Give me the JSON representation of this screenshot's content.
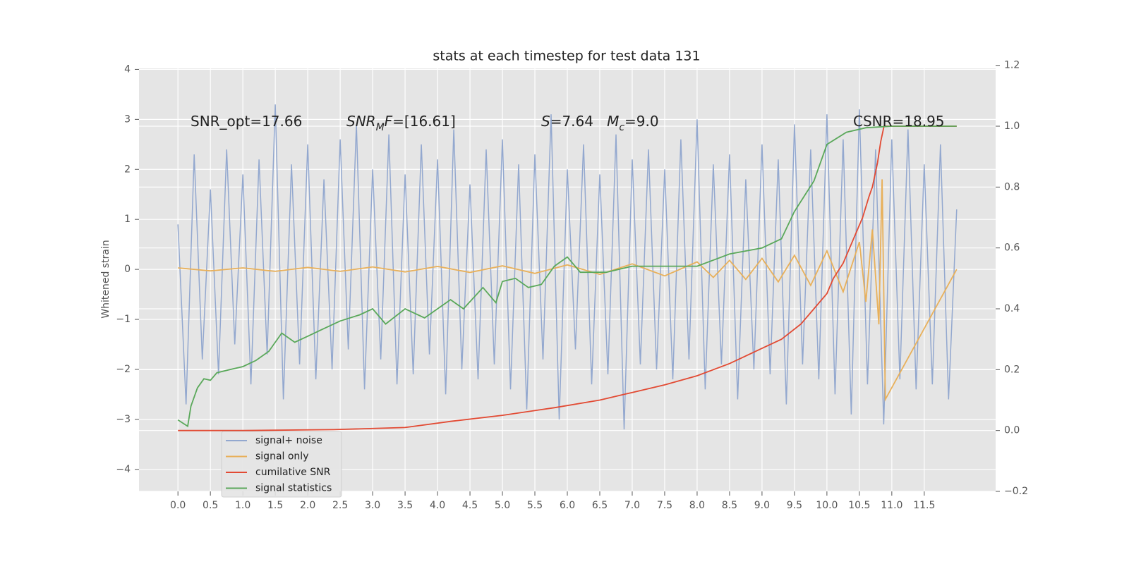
{
  "chart_data": {
    "type": "line",
    "title": "stats at each timestep for test data 131",
    "y_label": "Whitened strain",
    "annotations": [
      {
        "segments": [
          {
            "text": "SNR_opt=17.66"
          }
        ]
      },
      {
        "segments": [
          {
            "text": "SNR",
            "italic": true
          },
          {
            "text": "M",
            "italic": true,
            "sub": true
          },
          {
            "text": "F",
            "italic": true
          },
          {
            "text": "=[16.61]"
          }
        ]
      },
      {
        "segments": [
          {
            "text": "S",
            "italic": true
          },
          {
            "text": "=7.64   "
          },
          {
            "text": "M",
            "italic": true
          },
          {
            "text": "c",
            "italic": true,
            "sub": true
          },
          {
            "text": "=9.0"
          }
        ]
      },
      {
        "segments": [
          {
            "text": "CSNR=18.95"
          }
        ]
      }
    ],
    "xlim": [
      -0.6,
      12.6
    ],
    "ylim": [
      -4.44,
      4.02
    ],
    "y2lim": [
      -0.2,
      1.19
    ],
    "xticks": [
      {
        "value": 0,
        "label": "0.0"
      },
      0.5,
      {
        "value": 1,
        "label": "1.0"
      },
      1.5,
      {
        "value": 2,
        "label": "2.0"
      },
      2.5,
      {
        "value": 3,
        "label": "3.0"
      },
      3.5,
      {
        "value": 4,
        "label": "4.0"
      },
      4.5,
      {
        "value": 5,
        "label": "5.0"
      },
      5.5,
      {
        "value": 6,
        "label": "6.0"
      },
      6.5,
      {
        "value": 7,
        "label": "7.0"
      },
      7.5,
      {
        "value": 8,
        "label": "8.0"
      },
      8.5,
      {
        "value": 9,
        "label": "9.0"
      },
      9.5,
      {
        "value": 10,
        "label": "10.0"
      },
      10.5,
      {
        "value": 11,
        "label": "11.0"
      },
      11.5
    ],
    "yticks": [
      {
        "value": -4,
        "label": "−4"
      },
      {
        "value": -3,
        "label": "−3"
      },
      {
        "value": -2,
        "label": "−2"
      },
      {
        "value": -1,
        "label": "−1"
      },
      0,
      1,
      2,
      3,
      4
    ],
    "y2ticks": [
      {
        "value": -0.2,
        "label": "−0.2"
      },
      {
        "value": 0,
        "label": "0.0"
      },
      0.2,
      0.4,
      0.6,
      0.8,
      {
        "value": 1,
        "label": "1.0"
      },
      1.2
    ],
    "grid": true,
    "legend": "lower left",
    "series": [
      {
        "name": "signal+ noise",
        "color": "#93a8cf",
        "x": [
          0,
          0.125,
          0.25,
          0.375,
          0.5,
          0.625,
          0.75,
          0.875,
          1,
          1.125,
          1.25,
          1.375,
          1.5,
          1.625,
          1.75,
          1.875,
          2,
          2.125,
          2.25,
          2.375,
          2.5,
          2.625,
          2.75,
          2.875,
          3,
          3.125,
          3.25,
          3.375,
          3.5,
          3.625,
          3.75,
          3.875,
          4,
          4.125,
          4.25,
          4.375,
          4.5,
          4.625,
          4.75,
          4.875,
          5,
          5.125,
          5.25,
          5.375,
          5.5,
          5.625,
          5.75,
          5.875,
          6,
          6.125,
          6.25,
          6.375,
          6.5,
          6.625,
          6.75,
          6.875,
          7,
          7.125,
          7.25,
          7.375,
          7.5,
          7.625,
          7.75,
          7.875,
          8,
          8.125,
          8.25,
          8.375,
          8.5,
          8.625,
          8.75,
          8.875,
          9,
          9.125,
          9.25,
          9.375,
          9.5,
          9.625,
          9.75,
          9.875,
          10,
          10.125,
          10.25,
          10.375,
          10.5,
          10.625,
          10.75,
          10.875,
          11,
          11.125,
          11.25,
          11.375,
          11.5,
          11.625,
          11.75,
          11.875,
          12
        ],
        "values": [
          0.9,
          -2.7,
          2.3,
          -1.8,
          1.6,
          -2.1,
          2.4,
          -1.5,
          1.9,
          -2.3,
          2.2,
          -1.7,
          3.3,
          -2.6,
          2.1,
          -1.9,
          2.5,
          -2.2,
          1.8,
          -2.0,
          2.6,
          -1.6,
          2.9,
          -2.4,
          2.0,
          -1.8,
          2.7,
          -2.3,
          1.9,
          -2.1,
          2.5,
          -1.7,
          2.2,
          -2.5,
          2.8,
          -2.0,
          1.7,
          -2.2,
          2.4,
          -1.9,
          2.6,
          -2.4,
          2.1,
          -2.8,
          2.3,
          -1.8,
          3.1,
          -3.0,
          2.0,
          -1.6,
          2.5,
          -2.3,
          1.9,
          -2.1,
          2.7,
          -3.2,
          2.2,
          -1.9,
          2.4,
          -2.0,
          2.0,
          -2.2,
          2.6,
          -1.8,
          3.0,
          -2.4,
          2.1,
          -1.9,
          2.3,
          -2.6,
          1.8,
          -2.0,
          2.5,
          -2.1,
          2.2,
          -2.7,
          2.9,
          -1.9,
          2.4,
          -2.2,
          3.1,
          -2.5,
          2.6,
          -2.9,
          3.2,
          -2.3,
          2.4,
          -3.1,
          2.6,
          -2.2,
          2.8,
          -2.4,
          2.1,
          -2.3,
          2.5,
          -2.6,
          1.2
        ]
      },
      {
        "name": "signal only",
        "color": "#e8b05a",
        "x": [
          0,
          0.5,
          1,
          1.5,
          2,
          2.5,
          3,
          3.5,
          4,
          4.5,
          5,
          5.5,
          6,
          6.5,
          7,
          7.5,
          8,
          8.25,
          8.5,
          8.75,
          9,
          9.25,
          9.5,
          9.75,
          10,
          10.25,
          10.5,
          10.6,
          10.7,
          10.8,
          10.85,
          10.9,
          12
        ],
        "values": [
          0.03,
          -0.03,
          0.03,
          -0.04,
          0.04,
          -0.04,
          0.05,
          -0.05,
          0.06,
          -0.06,
          0.07,
          -0.08,
          0.09,
          -0.1,
          0.11,
          -0.13,
          0.15,
          -0.16,
          0.18,
          -0.2,
          0.22,
          -0.25,
          0.28,
          -0.32,
          0.37,
          -0.45,
          0.55,
          -0.65,
          0.8,
          -1.1,
          1.8,
          -2.6,
          0
        ]
      },
      {
        "name": "cumilative SNR",
        "color": "#e24a33",
        "axis": "y2",
        "x": [
          0,
          1,
          2.4,
          3.5,
          4.2,
          5,
          5.8,
          6.5,
          7,
          7.5,
          8,
          8.5,
          9,
          9.3,
          9.6,
          9.8,
          10,
          10.1,
          10.25,
          10.35,
          10.45,
          10.55,
          10.65,
          10.7,
          10.78,
          10.83,
          10.88,
          11.5,
          12
        ],
        "values": [
          0,
          0,
          0.003,
          0.01,
          0.03,
          0.05,
          0.075,
          0.1,
          0.125,
          0.15,
          0.18,
          0.22,
          0.27,
          0.3,
          0.35,
          0.4,
          0.45,
          0.5,
          0.55,
          0.6,
          0.65,
          0.7,
          0.77,
          0.8,
          0.88,
          0.95,
          1.0,
          1.0,
          1.0
        ]
      },
      {
        "name": "signal statistics",
        "color": "#5aa85a",
        "axis": "y2",
        "x": [
          0,
          0.15,
          0.2,
          0.3,
          0.4,
          0.5,
          0.6,
          0.8,
          1.0,
          1.2,
          1.4,
          1.6,
          1.8,
          2.0,
          2.2,
          2.5,
          2.8,
          3.0,
          3.2,
          3.5,
          3.8,
          4.0,
          4.2,
          4.4,
          4.7,
          4.9,
          5.0,
          5.2,
          5.4,
          5.6,
          5.8,
          6.0,
          6.2,
          6.6,
          7.0,
          7.5,
          8.0,
          8.5,
          9.0,
          9.3,
          9.5,
          9.8,
          10.0,
          10.3,
          10.6,
          11.0,
          12
        ],
        "values": [
          0.035,
          0.014,
          0.08,
          0.14,
          0.17,
          0.165,
          0.19,
          0.2,
          0.21,
          0.23,
          0.26,
          0.32,
          0.29,
          0.31,
          0.33,
          0.36,
          0.38,
          0.4,
          0.35,
          0.4,
          0.37,
          0.4,
          0.43,
          0.4,
          0.47,
          0.42,
          0.49,
          0.5,
          0.47,
          0.48,
          0.54,
          0.57,
          0.52,
          0.52,
          0.54,
          0.54,
          0.54,
          0.58,
          0.6,
          0.63,
          0.72,
          0.82,
          0.94,
          0.98,
          0.995,
          1.0,
          1.0
        ]
      }
    ]
  }
}
